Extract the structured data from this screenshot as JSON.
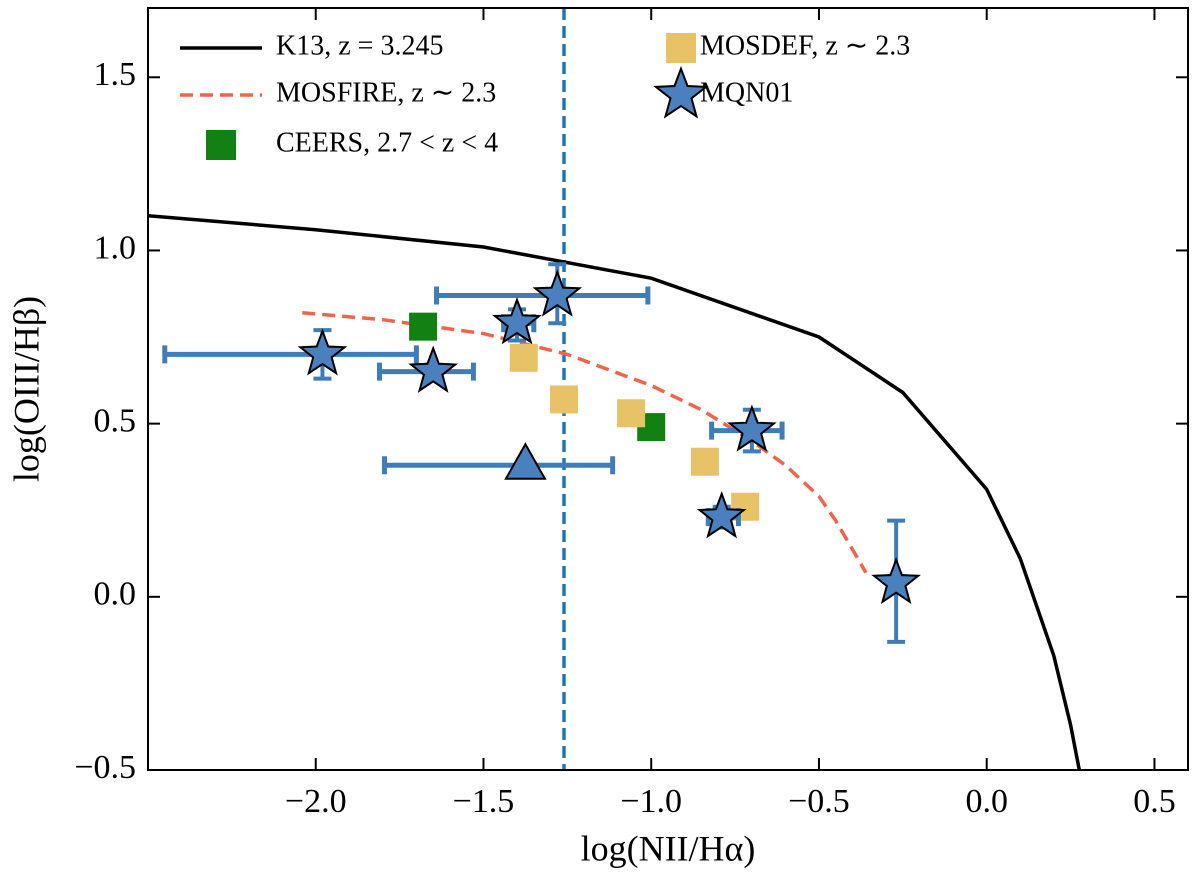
{
  "chart_data": {
    "type": "scatter",
    "xlabel": "log(NII/Hα)",
    "ylabel": "log(OIII/Hβ)",
    "xlim": [
      -2.5,
      0.6
    ],
    "ylim": [
      -0.5,
      1.7
    ],
    "xticks": [
      {
        "value": -2.0,
        "label": "−2.0"
      },
      {
        "value": -1.5,
        "label": "−1.5"
      },
      {
        "value": -1.0,
        "label": "−1.0"
      },
      {
        "value": -0.5,
        "label": "−0.5"
      },
      {
        "value": 0.0,
        "label": "0.0"
      },
      0.5
    ],
    "yticks": [
      {
        "value": -0.5,
        "label": "−0.5"
      },
      {
        "value": 0.0,
        "label": "0.0"
      },
      0.5,
      {
        "value": 1.0,
        "label": "1.0"
      },
      1.5
    ],
    "vline": -1.26,
    "vline_color": "#1f77b4",
    "series": [
      {
        "name": "K13, z = 3.245",
        "kind": "line",
        "style": "solid",
        "color": "#000000",
        "x": [
          -2.5,
          -2.0,
          -1.5,
          -1.0,
          -0.5,
          -0.25,
          0.0,
          0.1,
          0.2,
          0.25,
          0.276
        ],
        "y": [
          1.1,
          1.06,
          1.01,
          0.92,
          0.75,
          0.59,
          0.31,
          0.11,
          -0.17,
          -0.37,
          -0.5
        ]
      },
      {
        "name": "MOSFIRE, z ∼ 2.3",
        "kind": "line",
        "style": "dashed",
        "color": "#f0654a",
        "x": [
          -2.04,
          -1.8,
          -1.5,
          -1.25,
          -1.0,
          -0.85,
          -0.7,
          -0.6,
          -0.5,
          -0.45,
          -0.36
        ],
        "y": [
          0.82,
          0.8,
          0.76,
          0.7,
          0.61,
          0.54,
          0.45,
          0.38,
          0.29,
          0.22,
          0.07
        ]
      },
      {
        "name": "CEERS, 2.7 < z < 4",
        "kind": "scatter",
        "marker": "square",
        "color": "#138013",
        "x": [
          -1.68,
          -1.0
        ],
        "y": [
          0.78,
          0.49
        ]
      },
      {
        "name": "MOSDEF, z ∼ 2.3",
        "kind": "scatter",
        "marker": "square",
        "color": "#e8c266",
        "x": [
          -1.38,
          -1.26,
          -1.06,
          -0.84,
          -0.72
        ],
        "y": [
          0.69,
          0.57,
          0.53,
          0.39,
          0.26
        ]
      },
      {
        "name": "MQN01",
        "kind": "scatter",
        "marker": "star",
        "color": "#4a80bd",
        "err_color": "#3f7db9",
        "x": [
          -1.98,
          -1.65,
          -1.4,
          -1.28,
          -0.7,
          -0.79,
          -0.27
        ],
        "y": [
          0.7,
          0.65,
          0.79,
          0.87,
          0.48,
          0.23,
          0.04
        ],
        "xerr_minus": [
          0.47,
          0.16,
          0.04,
          0.36,
          0.12,
          0.04,
          0.02
        ],
        "xerr_plus": [
          0.28,
          0.12,
          0.05,
          0.27,
          0.09,
          0.05,
          0.02
        ],
        "yerr_minus": [
          0.07,
          0.02,
          0.05,
          0.08,
          0.06,
          0.03,
          0.17
        ],
        "yerr_plus": [
          0.07,
          0.02,
          0.04,
          0.09,
          0.06,
          0.03,
          0.18
        ]
      },
      {
        "kind": "scatter",
        "marker": "triangle",
        "color": "#4a80bd",
        "err_color": "#3f7db9",
        "x": [
          -1.375
        ],
        "y": [
          0.38
        ],
        "xerr_minus": [
          0.42
        ],
        "xerr_plus": [
          0.26
        ]
      }
    ]
  }
}
